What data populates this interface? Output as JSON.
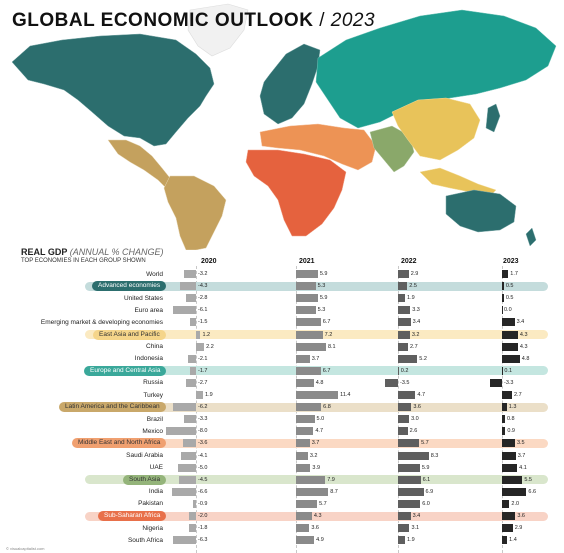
{
  "title": {
    "main": "GLOBAL ECONOMIC OUTLOOK",
    "separator": "/",
    "year": "2023"
  },
  "chart_title": {
    "bold": "REAL GDP",
    "italic": "(ANNUAL % CHANGE)",
    "subtitle": "TOP ECONOMIES IN EACH GROUP SHOWN"
  },
  "credit": "© visualcapitalist.com",
  "colors": {
    "advanced": "#2c6e6e",
    "emerging_europe_asia": "#1d9e8f",
    "east_asia": "#e8c35a",
    "middle_east": "#ed9355",
    "africa": "#e5623e",
    "south_asia": "#8aa86a",
    "latin_america": "#c4a15e",
    "bar_2020": "#a9a9a9",
    "bar_2021": "#8a8a8a",
    "bar_2022": "#5f5f5f",
    "bar_2023": "#262626"
  },
  "chart_data": {
    "type": "bar",
    "years": [
      "2020",
      "2021",
      "2022",
      "2023"
    ],
    "rows": [
      {
        "name": "World",
        "group": false,
        "values": [
          -3.2,
          5.9,
          2.9,
          1.7
        ]
      },
      {
        "name": "Advanced economies",
        "group": true,
        "band": "#c4dcdc",
        "pill": "#2c6e6e",
        "pill_text": "#ffffff",
        "values": [
          -4.3,
          5.3,
          2.5,
          0.5
        ]
      },
      {
        "name": "United States",
        "group": false,
        "values": [
          -2.8,
          5.9,
          1.9,
          0.5
        ]
      },
      {
        "name": "Euro area",
        "group": false,
        "values": [
          -6.1,
          5.3,
          3.3,
          0.0
        ]
      },
      {
        "name": "Emerging market & developing economies",
        "group": false,
        "values": [
          -1.5,
          6.7,
          3.4,
          3.4
        ]
      },
      {
        "name": "East Asia and Pacific",
        "group": true,
        "band": "#fbeac2",
        "pill": "#f5d58a",
        "pill_text": "#333333",
        "values": [
          1.2,
          7.2,
          3.2,
          4.3
        ]
      },
      {
        "name": "China",
        "group": false,
        "values": [
          2.2,
          8.1,
          2.7,
          4.3
        ]
      },
      {
        "name": "Indonesia",
        "group": false,
        "values": [
          -2.1,
          3.7,
          5.2,
          4.8
        ]
      },
      {
        "name": "Europe and Central Asia",
        "group": true,
        "band": "#c4e6e0",
        "pill": "#3aa89a",
        "pill_text": "#ffffff",
        "values": [
          -1.7,
          6.7,
          0.2,
          0.1
        ]
      },
      {
        "name": "Russia",
        "group": false,
        "values": [
          -2.7,
          4.8,
          -3.5,
          -3.3
        ]
      },
      {
        "name": "Turkey",
        "group": false,
        "values": [
          1.9,
          11.4,
          4.7,
          2.7
        ]
      },
      {
        "name": "Latin America and the Caribbean",
        "group": true,
        "band": "#ebdfc8",
        "pill": "#c9a86a",
        "pill_text": "#333333",
        "values": [
          -6.2,
          6.8,
          3.6,
          1.3
        ]
      },
      {
        "name": "Brazil",
        "group": false,
        "values": [
          -3.3,
          5.0,
          3.0,
          0.8
        ]
      },
      {
        "name": "Mexico",
        "group": false,
        "values": [
          -8.0,
          4.7,
          2.6,
          0.9
        ]
      },
      {
        "name": "Middle East and North Africa",
        "group": true,
        "band": "#fbd9c3",
        "pill": "#f0a070",
        "pill_text": "#333333",
        "values": [
          -3.6,
          3.7,
          5.7,
          3.5
        ]
      },
      {
        "name": "Saudi Arabia",
        "group": false,
        "values": [
          -4.1,
          3.2,
          8.3,
          3.7
        ]
      },
      {
        "name": "UAE",
        "group": false,
        "values": [
          -5.0,
          3.9,
          5.9,
          4.1
        ]
      },
      {
        "name": "South Asia",
        "group": true,
        "band": "#d9e6cc",
        "pill": "#94b47a",
        "pill_text": "#333333",
        "values": [
          -4.5,
          7.9,
          6.1,
          5.5
        ]
      },
      {
        "name": "India",
        "group": false,
        "values": [
          -6.6,
          8.7,
          6.9,
          6.6
        ]
      },
      {
        "name": "Pakistan",
        "group": false,
        "values": [
          -0.9,
          5.7,
          6.0,
          2.0
        ]
      },
      {
        "name": "Sub-Saharan Africa",
        "group": true,
        "band": "#f8d3c6",
        "pill": "#e8704a",
        "pill_text": "#ffffff",
        "values": [
          -2.0,
          4.3,
          3.4,
          3.6
        ]
      },
      {
        "name": "Nigeria",
        "group": false,
        "values": [
          -1.8,
          3.6,
          3.1,
          2.9
        ]
      },
      {
        "name": "South Africa",
        "group": false,
        "values": [
          -6.3,
          4.9,
          1.9,
          1.4
        ]
      }
    ]
  }
}
